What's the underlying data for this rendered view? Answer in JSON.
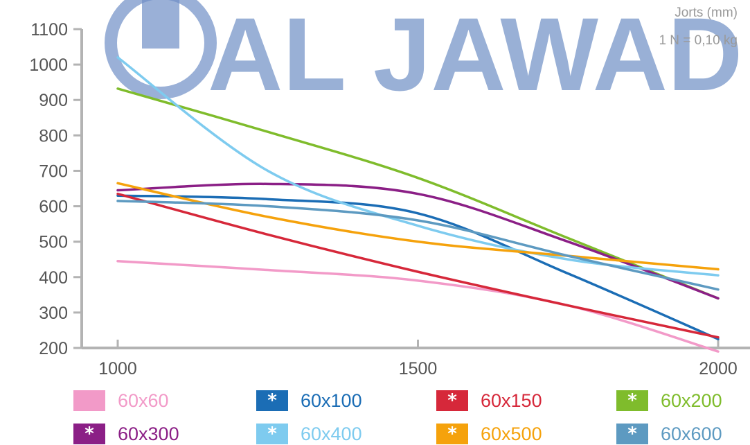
{
  "chart_data": {
    "type": "line",
    "title": "",
    "xlabel": "",
    "ylabel": "",
    "notes": [
      "Jorts (mm)",
      "1 N = 0,10 kg"
    ],
    "xlim": [
      1000,
      2000
    ],
    "ylim": [
      200,
      1100
    ],
    "x_ticks": [
      1000,
      1500,
      2000
    ],
    "y_ticks": [
      200,
      300,
      400,
      500,
      600,
      700,
      800,
      900,
      1000,
      1100
    ],
    "grid": false,
    "legend_position": "bottom",
    "x": [
      1000,
      1250,
      1500,
      1750,
      2000
    ],
    "series": [
      {
        "name": "60x60",
        "color": "#f29ac8",
        "marker": "",
        "values": [
          445,
          420,
          390,
          320,
          190
        ]
      },
      {
        "name": "60x100",
        "color": "#1b6db5",
        "marker": "*",
        "values": [
          630,
          620,
          580,
          410,
          225
        ]
      },
      {
        "name": "60x150",
        "color": "#d6283a",
        "marker": "*",
        "values": [
          635,
          520,
          415,
          320,
          230
        ]
      },
      {
        "name": "60x200",
        "color": "#7fbc2c",
        "marker": "*",
        "values": [
          932,
          810,
          680,
          510,
          340
        ]
      },
      {
        "name": "60x300",
        "color": "#8b1f86",
        "marker": "*",
        "values": [
          645,
          663,
          635,
          500,
          340
        ]
      },
      {
        "name": "60x400",
        "color": "#7ecbef",
        "marker": "*",
        "values": [
          1020,
          700,
          545,
          450,
          405
        ]
      },
      {
        "name": "60x500",
        "color": "#f5a20c",
        "marker": "*",
        "values": [
          665,
          570,
          500,
          460,
          422
        ]
      },
      {
        "name": "60x600",
        "color": "#5d9ac1",
        "marker": "*",
        "values": [
          615,
          600,
          560,
          460,
          365
        ]
      }
    ]
  },
  "watermark": {
    "text": "AL JAWAD"
  }
}
